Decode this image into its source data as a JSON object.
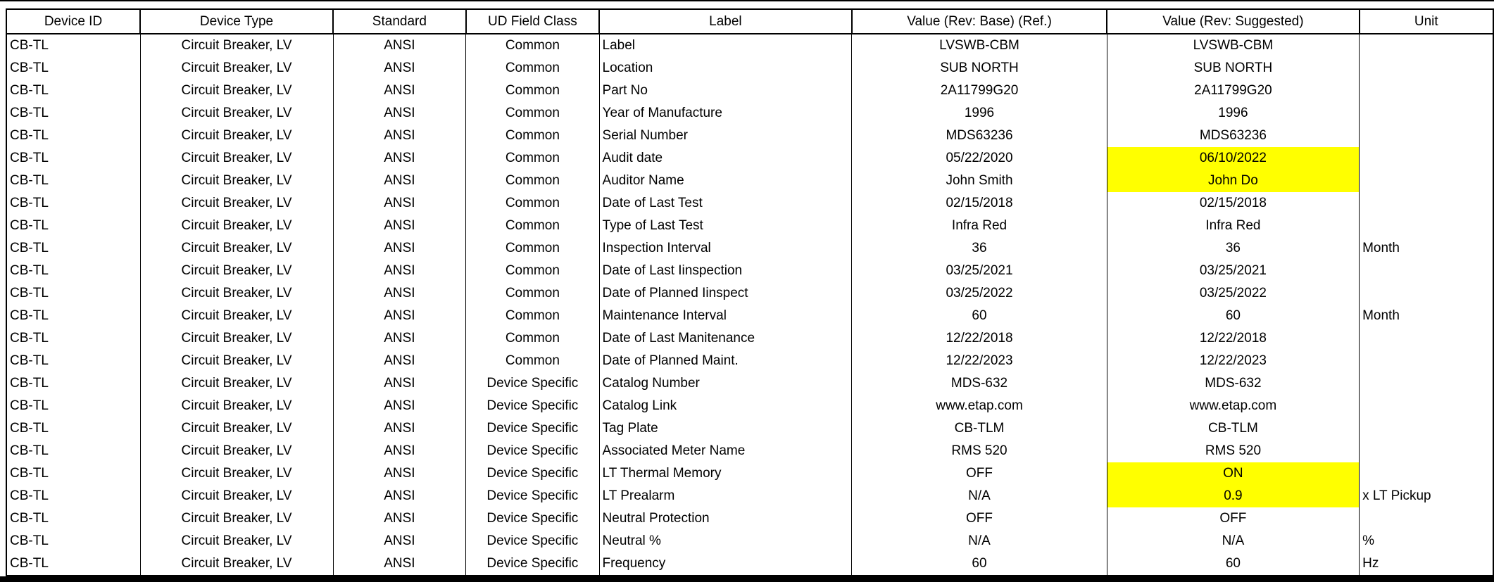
{
  "colors": {
    "highlight": "#FFFF00",
    "grid": "#000000",
    "background": "#FFFFFF",
    "text": "#000000"
  },
  "table": {
    "columns": [
      {
        "key": "device_id",
        "label": "Device ID"
      },
      {
        "key": "device_type",
        "label": "Device Type"
      },
      {
        "key": "standard",
        "label": "Standard"
      },
      {
        "key": "field_class",
        "label": "UD Field Class"
      },
      {
        "key": "label",
        "label": "Label"
      },
      {
        "key": "base",
        "label": "Value (Rev: Base) (Ref.)"
      },
      {
        "key": "suggested",
        "label": "Value (Rev: Suggested)"
      },
      {
        "key": "unit",
        "label": "Unit"
      }
    ],
    "rows": [
      {
        "device_id": "CB-TL",
        "device_type": "Circuit Breaker, LV",
        "standard": "ANSI",
        "field_class": "Common",
        "label": "Label",
        "base": "LVSWB-CBM",
        "suggested": "LVSWB-CBM",
        "unit": "",
        "suggested_highlight": false
      },
      {
        "device_id": "CB-TL",
        "device_type": "Circuit Breaker, LV",
        "standard": "ANSI",
        "field_class": "Common",
        "label": "Location",
        "base": "SUB NORTH",
        "suggested": "SUB NORTH",
        "unit": "",
        "suggested_highlight": false
      },
      {
        "device_id": "CB-TL",
        "device_type": "Circuit Breaker, LV",
        "standard": "ANSI",
        "field_class": "Common",
        "label": "Part No",
        "base": "2A11799G20",
        "suggested": "2A11799G20",
        "unit": "",
        "suggested_highlight": false
      },
      {
        "device_id": "CB-TL",
        "device_type": "Circuit Breaker, LV",
        "standard": "ANSI",
        "field_class": "Common",
        "label": "Year of Manufacture",
        "base": "1996",
        "suggested": "1996",
        "unit": "",
        "suggested_highlight": false
      },
      {
        "device_id": "CB-TL",
        "device_type": "Circuit Breaker, LV",
        "standard": "ANSI",
        "field_class": "Common",
        "label": "Serial Number",
        "base": "MDS63236",
        "suggested": "MDS63236",
        "unit": "",
        "suggested_highlight": false
      },
      {
        "device_id": "CB-TL",
        "device_type": "Circuit Breaker, LV",
        "standard": "ANSI",
        "field_class": "Common",
        "label": "Audit date",
        "base": "05/22/2020",
        "suggested": "06/10/2022",
        "unit": "",
        "suggested_highlight": true
      },
      {
        "device_id": "CB-TL",
        "device_type": "Circuit Breaker, LV",
        "standard": "ANSI",
        "field_class": "Common",
        "label": "Auditor Name",
        "base": "John Smith",
        "suggested": "John Do",
        "unit": "",
        "suggested_highlight": true
      },
      {
        "device_id": "CB-TL",
        "device_type": "Circuit Breaker, LV",
        "standard": "ANSI",
        "field_class": "Common",
        "label": "Date of Last Test",
        "base": "02/15/2018",
        "suggested": "02/15/2018",
        "unit": "",
        "suggested_highlight": false
      },
      {
        "device_id": "CB-TL",
        "device_type": "Circuit Breaker, LV",
        "standard": "ANSI",
        "field_class": "Common",
        "label": "Type of Last Test",
        "base": "Infra Red",
        "suggested": "Infra Red",
        "unit": "",
        "suggested_highlight": false
      },
      {
        "device_id": "CB-TL",
        "device_type": "Circuit Breaker, LV",
        "standard": "ANSI",
        "field_class": "Common",
        "label": "Inspection Interval",
        "base": "36",
        "suggested": "36",
        "unit": "Month",
        "suggested_highlight": false
      },
      {
        "device_id": "CB-TL",
        "device_type": "Circuit Breaker, LV",
        "standard": "ANSI",
        "field_class": "Common",
        "label": "Date of Last Iinspection",
        "base": "03/25/2021",
        "suggested": "03/25/2021",
        "unit": "",
        "suggested_highlight": false
      },
      {
        "device_id": "CB-TL",
        "device_type": "Circuit Breaker, LV",
        "standard": "ANSI",
        "field_class": "Common",
        "label": "Date of Planned Iinspect",
        "base": "03/25/2022",
        "suggested": "03/25/2022",
        "unit": "",
        "suggested_highlight": false
      },
      {
        "device_id": "CB-TL",
        "device_type": "Circuit Breaker, LV",
        "standard": "ANSI",
        "field_class": "Common",
        "label": "Maintenance Interval",
        "base": "60",
        "suggested": "60",
        "unit": "Month",
        "suggested_highlight": false
      },
      {
        "device_id": "CB-TL",
        "device_type": "Circuit Breaker, LV",
        "standard": "ANSI",
        "field_class": "Common",
        "label": "Date of Last Manitenance",
        "base": "12/22/2018",
        "suggested": "12/22/2018",
        "unit": "",
        "suggested_highlight": false
      },
      {
        "device_id": "CB-TL",
        "device_type": "Circuit Breaker, LV",
        "standard": "ANSI",
        "field_class": "Common",
        "label": "Date of Planned Maint.",
        "base": "12/22/2023",
        "suggested": "12/22/2023",
        "unit": "",
        "suggested_highlight": false
      },
      {
        "device_id": "CB-TL",
        "device_type": "Circuit Breaker, LV",
        "standard": "ANSI",
        "field_class": "Device Specific",
        "label": "Catalog Number",
        "base": "MDS-632",
        "suggested": "MDS-632",
        "unit": "",
        "suggested_highlight": false
      },
      {
        "device_id": "CB-TL",
        "device_type": "Circuit Breaker, LV",
        "standard": "ANSI",
        "field_class": "Device Specific",
        "label": "Catalog Link",
        "base": "www.etap.com",
        "suggested": "www.etap.com",
        "unit": "",
        "suggested_highlight": false
      },
      {
        "device_id": "CB-TL",
        "device_type": "Circuit Breaker, LV",
        "standard": "ANSI",
        "field_class": "Device Specific",
        "label": "Tag Plate",
        "base": "CB-TLM",
        "suggested": "CB-TLM",
        "unit": "",
        "suggested_highlight": false
      },
      {
        "device_id": "CB-TL",
        "device_type": "Circuit Breaker, LV",
        "standard": "ANSI",
        "field_class": "Device Specific",
        "label": "Associated Meter Name",
        "base": "RMS 520",
        "suggested": "RMS 520",
        "unit": "",
        "suggested_highlight": false
      },
      {
        "device_id": "CB-TL",
        "device_type": "Circuit Breaker, LV",
        "standard": "ANSI",
        "field_class": "Device Specific",
        "label": "LT Thermal Memory",
        "base": "OFF",
        "suggested": "ON",
        "unit": "",
        "suggested_highlight": true
      },
      {
        "device_id": "CB-TL",
        "device_type": "Circuit Breaker, LV",
        "standard": "ANSI",
        "field_class": "Device Specific",
        "label": "LT Prealarm",
        "base": "N/A",
        "suggested": "0.9",
        "unit": "x LT Pickup",
        "suggested_highlight": true
      },
      {
        "device_id": "CB-TL",
        "device_type": "Circuit Breaker, LV",
        "standard": "ANSI",
        "field_class": "Device Specific",
        "label": "Neutral Protection",
        "base": "OFF",
        "suggested": "OFF",
        "unit": "",
        "suggested_highlight": false
      },
      {
        "device_id": "CB-TL",
        "device_type": "Circuit Breaker, LV",
        "standard": "ANSI",
        "field_class": "Device Specific",
        "label": "Neutral %",
        "base": "N/A",
        "suggested": "N/A",
        "unit": "%",
        "suggested_highlight": false
      },
      {
        "device_id": "CB-TL",
        "device_type": "Circuit Breaker, LV",
        "standard": "ANSI",
        "field_class": "Device Specific",
        "label": "Frequency",
        "base": "60",
        "suggested": "60",
        "unit": "Hz",
        "suggested_highlight": false
      }
    ]
  }
}
